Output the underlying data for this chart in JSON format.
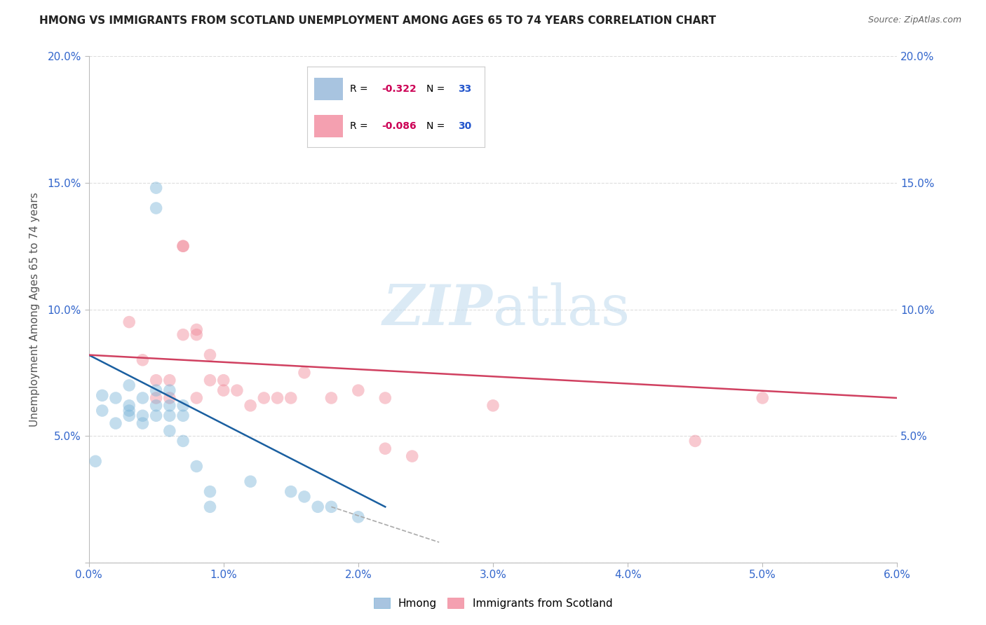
{
  "title": "HMONG VS IMMIGRANTS FROM SCOTLAND UNEMPLOYMENT AMONG AGES 65 TO 74 YEARS CORRELATION CHART",
  "source": "Source: ZipAtlas.com",
  "ylabel": "Unemployment Among Ages 65 to 74 years",
  "xlim": [
    0.0,
    0.06
  ],
  "ylim": [
    0.0,
    0.2
  ],
  "xtick_labels": [
    "0.0%",
    "1.0%",
    "2.0%",
    "3.0%",
    "4.0%",
    "5.0%",
    "6.0%"
  ],
  "xtick_vals": [
    0.0,
    0.01,
    0.02,
    0.03,
    0.04,
    0.05,
    0.06
  ],
  "ytick_vals_left": [
    0.0,
    0.05,
    0.1,
    0.15,
    0.2
  ],
  "ytick_vals_right": [
    0.05,
    0.1,
    0.15,
    0.2
  ],
  "hmong_color": "#7ab4d8",
  "scotland_color": "#f08898",
  "hmong_label": "Hmong",
  "scotland_label": "Immigrants from Scotland",
  "watermark_zip": "ZIP",
  "watermark_atlas": "atlas",
  "background_color": "#ffffff",
  "grid_color": "#dddddd",
  "hmong_x": [
    0.0005,
    0.001,
    0.001,
    0.002,
    0.002,
    0.003,
    0.003,
    0.003,
    0.003,
    0.004,
    0.004,
    0.004,
    0.005,
    0.005,
    0.005,
    0.005,
    0.005,
    0.006,
    0.006,
    0.006,
    0.006,
    0.007,
    0.007,
    0.007,
    0.008,
    0.009,
    0.009,
    0.012,
    0.015,
    0.016,
    0.017,
    0.018,
    0.02
  ],
  "hmong_y": [
    0.04,
    0.06,
    0.066,
    0.055,
    0.065,
    0.06,
    0.062,
    0.058,
    0.07,
    0.055,
    0.058,
    0.065,
    0.14,
    0.148,
    0.058,
    0.062,
    0.068,
    0.058,
    0.062,
    0.068,
    0.052,
    0.058,
    0.062,
    0.048,
    0.038,
    0.028,
    0.022,
    0.032,
    0.028,
    0.026,
    0.022,
    0.022,
    0.018
  ],
  "scotland_x": [
    0.003,
    0.004,
    0.005,
    0.005,
    0.006,
    0.006,
    0.007,
    0.007,
    0.007,
    0.008,
    0.008,
    0.008,
    0.009,
    0.009,
    0.01,
    0.01,
    0.011,
    0.012,
    0.013,
    0.014,
    0.015,
    0.016,
    0.018,
    0.02,
    0.022,
    0.022,
    0.024,
    0.03,
    0.045,
    0.05
  ],
  "scotland_y": [
    0.095,
    0.08,
    0.065,
    0.072,
    0.065,
    0.072,
    0.125,
    0.125,
    0.09,
    0.09,
    0.092,
    0.065,
    0.072,
    0.082,
    0.068,
    0.072,
    0.068,
    0.062,
    0.065,
    0.065,
    0.065,
    0.075,
    0.065,
    0.068,
    0.065,
    0.045,
    0.042,
    0.062,
    0.048,
    0.065
  ],
  "hmong_line_x": [
    0.0,
    0.022
  ],
  "hmong_line_y": [
    0.082,
    0.022
  ],
  "scotland_line_x": [
    0.0,
    0.06
  ],
  "scotland_line_y": [
    0.082,
    0.065
  ],
  "hmong_line_color": "#1a5fa0",
  "scotland_line_color": "#d04060",
  "dashed_line_x": [
    0.018,
    0.026
  ],
  "dashed_line_y": [
    0.022,
    0.008
  ],
  "dashed_line_color": "#aaaaaa",
  "title_fontsize": 11,
  "tick_fontsize": 11,
  "ylabel_fontsize": 11
}
